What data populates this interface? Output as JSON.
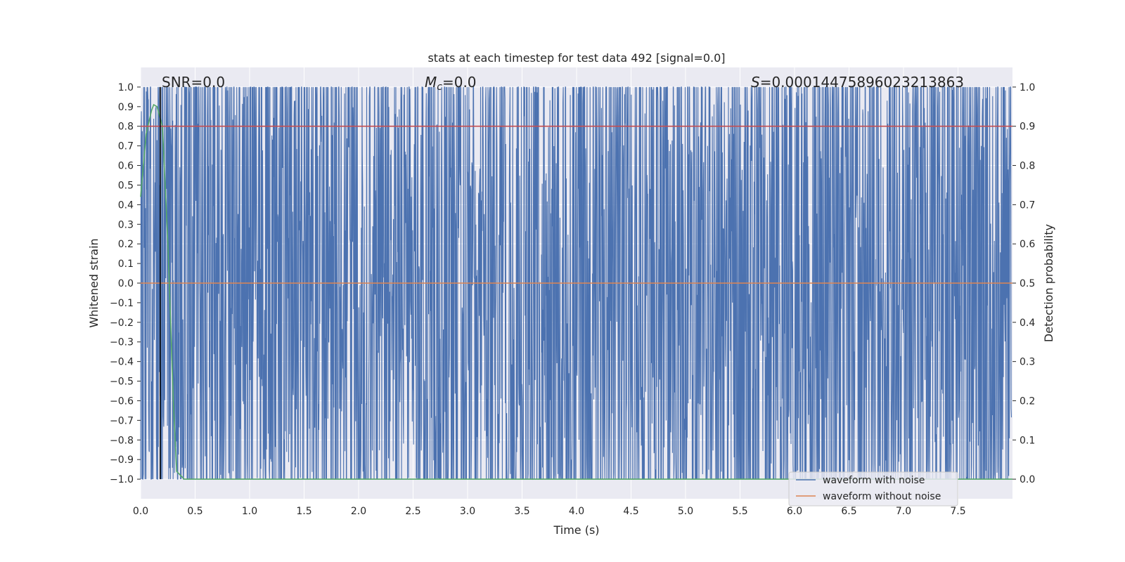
{
  "chart_data": {
    "type": "line",
    "title": "stats at each timestep for test data 492 [signal=0.0]",
    "xlabel": "Time (s)",
    "ylabel": "Whitened strain",
    "y2label": "Detection probability",
    "xlim": [
      0.0,
      8.0
    ],
    "ylim": [
      -1.1,
      1.1
    ],
    "y2lim": [
      -0.05,
      1.05
    ],
    "grid": true,
    "background": "#eaeaf2",
    "x_ticks": [
      "0.0",
      "0.5",
      "1.0",
      "1.5",
      "2.0",
      "2.5",
      "3.0",
      "3.5",
      "4.0",
      "4.5",
      "5.0",
      "5.5",
      "6.0",
      "6.5",
      "7.0",
      "7.5"
    ],
    "y_ticks": [
      "1.0",
      "0.9",
      "0.8",
      "0.7",
      "0.6",
      "0.5",
      "0.4",
      "0.3",
      "0.2",
      "0.1",
      "0.0",
      "−0.1",
      "−0.2",
      "−0.3",
      "−0.4",
      "−0.5",
      "−0.6",
      "−0.7",
      "−0.8",
      "−0.9",
      "−1.0"
    ],
    "y2_ticks": [
      "1.0",
      "0.9",
      "0.8",
      "0.7",
      "0.6",
      "0.5",
      "0.4",
      "0.3",
      "0.2",
      "0.1",
      "0.0"
    ],
    "annotations": {
      "snr": "SNR=0.0",
      "mc_symbol": "M",
      "mc_sub": "c",
      "mc_value": "=0.0",
      "s_symbol": "S",
      "s_value": "=0.00014475896023213863"
    },
    "series": [
      {
        "name": "waveform with noise",
        "color": "#4c72b0",
        "axis": "left",
        "range": [
          -1.0,
          1.0
        ],
        "description_values": "dense noise spanning -1.0 to 1.0"
      },
      {
        "name": "waveform without noise",
        "color": "#dd8452",
        "axis": "left",
        "values": [
          [
            0.0,
            0.0
          ],
          [
            8.0,
            0.0
          ]
        ]
      },
      {
        "name": "",
        "color": "#55a868",
        "axis": "right",
        "values": [
          [
            0.0,
            0.72
          ],
          [
            0.05,
            0.88
          ],
          [
            0.1,
            0.94
          ],
          [
            0.12,
            0.955
          ],
          [
            0.15,
            0.95
          ],
          [
            0.2,
            0.9
          ],
          [
            0.25,
            0.6
          ],
          [
            0.3,
            0.2
          ],
          [
            0.33,
            0.02
          ],
          [
            0.4,
            0.0
          ],
          [
            8.0,
            0.0
          ]
        ]
      },
      {
        "name": "",
        "color": "#c44e52",
        "axis": "right",
        "values": [
          [
            0.0,
            0.9
          ],
          [
            8.0,
            0.9
          ]
        ]
      }
    ],
    "vline": {
      "x": 0.18,
      "color": "#000000"
    },
    "legend": {
      "placement": "lower-right",
      "entries": [
        "waveform with noise",
        "waveform without noise"
      ]
    }
  }
}
